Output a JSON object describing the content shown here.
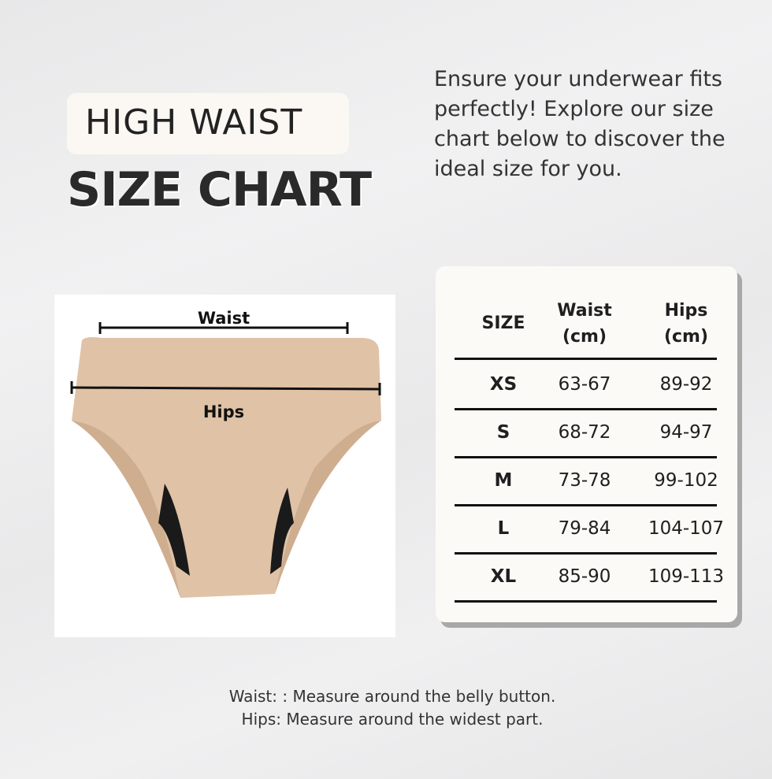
{
  "title": {
    "subtitle": "HIGH WAIST",
    "main": "SIZE CHART"
  },
  "description": "Ensure your underwear fits perfectly! Explore our size chart below to discover the ideal size for you.",
  "diagram": {
    "waist_label": "Waist",
    "hips_label": "Hips"
  },
  "table": {
    "headers": [
      "SIZE",
      "Waist (cm)",
      "Hips (cm)"
    ],
    "rows": [
      [
        "XS",
        "63-67",
        "89-92"
      ],
      [
        "S",
        "68-72",
        "94-97"
      ],
      [
        "M",
        "73-78",
        "99-102"
      ],
      [
        "L",
        "79-84",
        "104-107"
      ],
      [
        "XL",
        "85-90",
        "109-113"
      ]
    ]
  },
  "notes": {
    "waist": "Waist: : Measure around the belly button.",
    "hips": "Hips: Measure around the widest part."
  },
  "colors": {
    "fabric": "#e0c2a6",
    "panel": "#fcfaf6",
    "gusset": "#1a1a1a"
  }
}
